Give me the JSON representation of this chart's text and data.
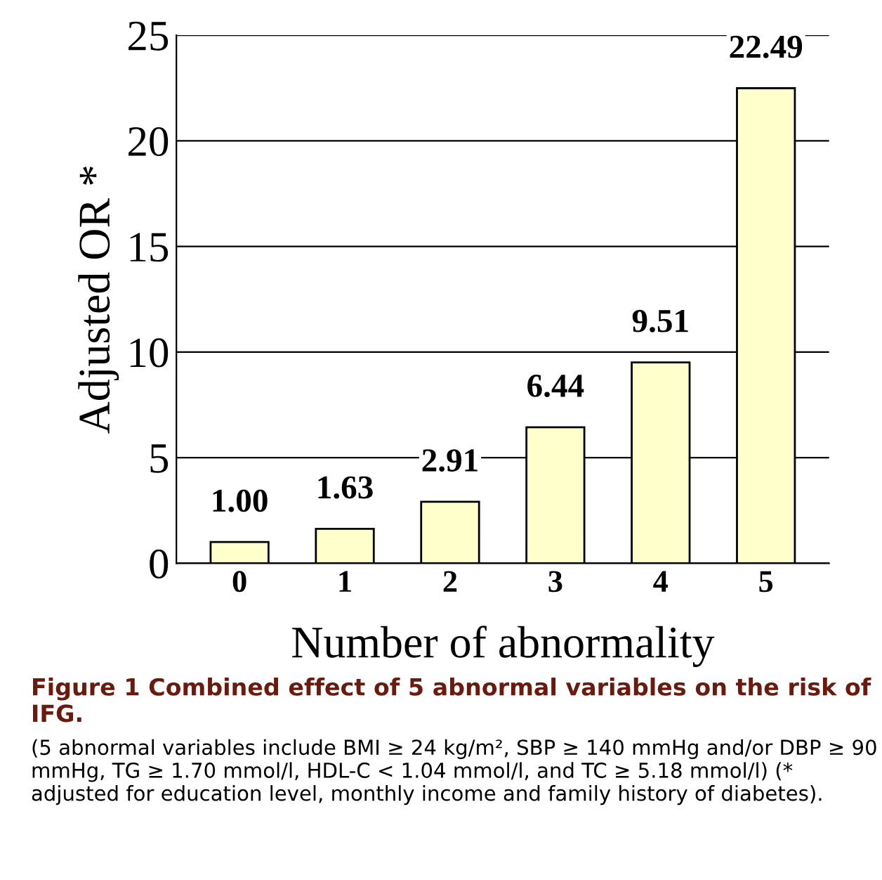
{
  "chart_data": {
    "type": "bar",
    "xlabel": "Number of abnormality",
    "ylabel": "Adjusted OR *",
    "categories": [
      "0",
      "1",
      "2",
      "3",
      "4",
      "5"
    ],
    "values": [
      1.0,
      1.63,
      2.91,
      6.44,
      9.51,
      22.49
    ],
    "value_labels": [
      "1.00",
      "1.63",
      "2.91",
      "6.44",
      "9.51",
      "22.49"
    ],
    "color": "#ffffcc",
    "ylim": [
      0,
      25
    ],
    "yticks": [
      0,
      5,
      10,
      15,
      20,
      25
    ],
    "grid": "y",
    "annotations": [
      "Figure 1 Combined effect of 5 abnormal variables on the risk of IFG.",
      "(5 abnormal variables include BMI ≥ 24 kg/m², SBP ≥ 140 mmHg and/or DBP ≥ 90 mmHg, TG ≥ 1.70 mmol/l, HDL-C < 1.04 mmol/l, and TC ≥ 5.18 mmol/l) (* adjusted for education level, monthly income and family history of diabetes)."
    ]
  }
}
